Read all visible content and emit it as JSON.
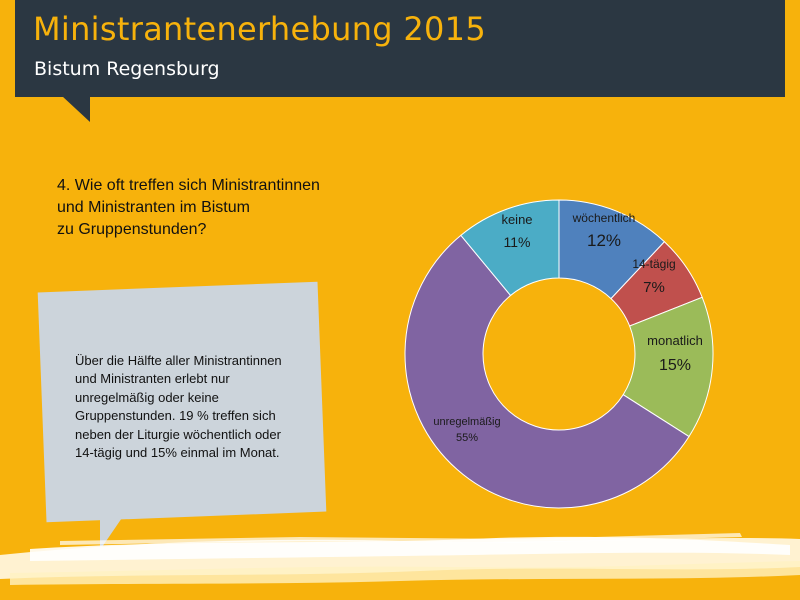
{
  "header": {
    "title": "Ministrantenerhebung 2015",
    "subtitle": "Bistum Regensburg"
  },
  "question": {
    "lines": [
      "4. Wie oft treffen sich Ministrantinnen",
      "und Ministranten im Bistum",
      "zu Gruppenstunden?"
    ]
  },
  "note": {
    "lines": [
      "Über die Hälfte aller Ministrantinnen",
      "und Ministranten erlebt nur",
      "unregelmäßig oder keine",
      "Gruppenstunden.  19 % treffen sich",
      "neben der Liturgie wöchentlich oder",
      "14-tägig und 15% einmal im Monat."
    ]
  },
  "colors": {
    "background": "#F7B20C",
    "header": "#2B3742",
    "title": "#F7B20C",
    "note_box": "#CCD4DB"
  },
  "chart_data": {
    "type": "doughnut",
    "categories": [
      "wöchentlich",
      "14-tägig",
      "monatlich",
      "unregelmäßig",
      "keine"
    ],
    "values": [
      12,
      7,
      15,
      55,
      11
    ],
    "value_labels": [
      "12%",
      "7%",
      "15%",
      "55%",
      "11%"
    ],
    "colors": [
      "#4F81BD",
      "#C0504D",
      "#9BBB59",
      "#8064A2",
      "#4BACC6"
    ],
    "unit": "%"
  }
}
